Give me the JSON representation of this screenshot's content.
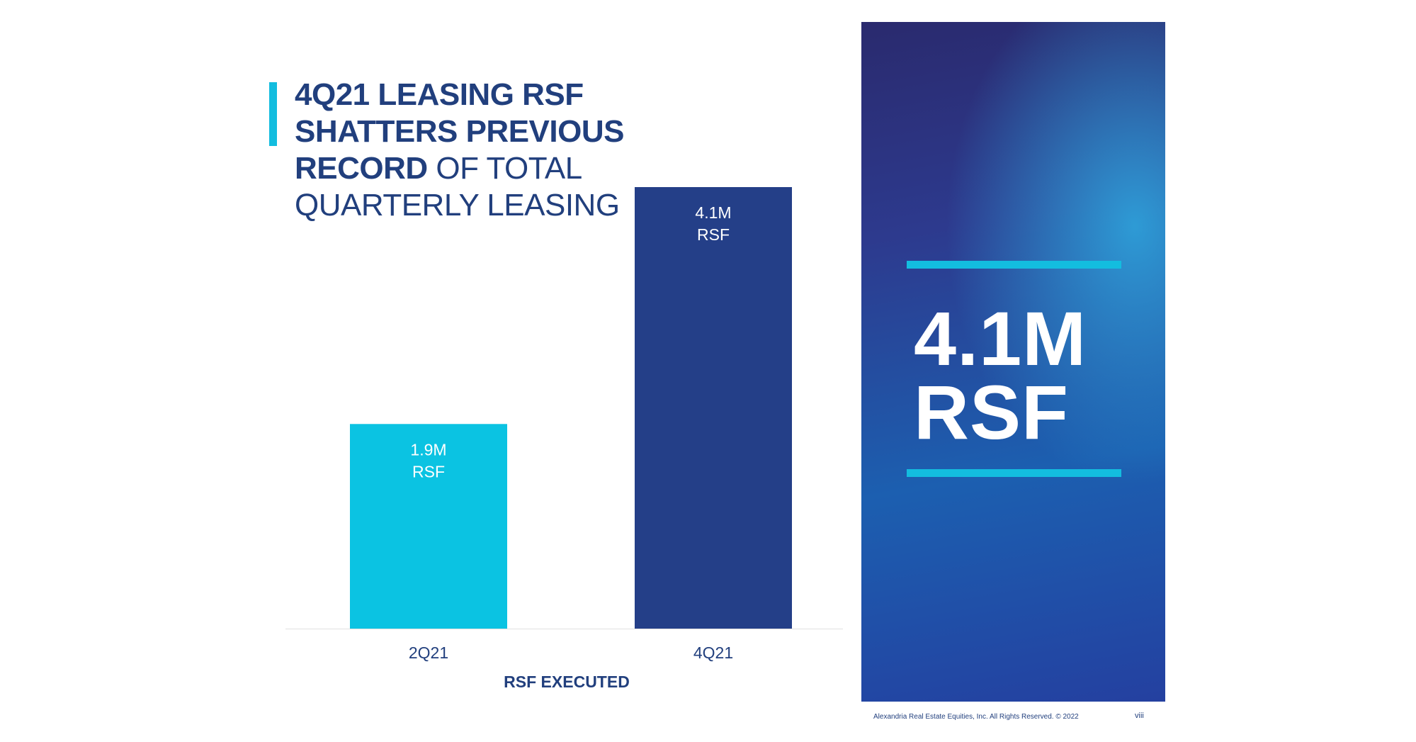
{
  "title": {
    "line1": "4Q21 LEASING RSF",
    "line2": "SHATTERS PREVIOUS",
    "line3_bold": "RECORD",
    "line3_light": "OF TOTAL",
    "line4": "QUARTERLY LEASING"
  },
  "chart_data": {
    "type": "bar",
    "categories": [
      "2Q21",
      "4Q21"
    ],
    "values": [
      1.9,
      4.1
    ],
    "data_labels": [
      [
        "1.9M",
        "RSF"
      ],
      [
        "4.1M",
        "RSF"
      ]
    ],
    "colors": [
      "#0bc3e2",
      "#243f88"
    ],
    "xlabel": "RSF EXECUTED",
    "ylabel": "",
    "unit": "M RSF",
    "ylim": [
      0,
      4.1
    ]
  },
  "highlight": {
    "value": "4.1M",
    "unit": "RSF"
  },
  "footer": {
    "copyright": "Alexandria Real Estate Equities, Inc. All Rights Reserved. © 2022",
    "page": "viii"
  },
  "colors": {
    "navy": "#213f7d",
    "cyan": "#13bddf",
    "bar_light": "#0bc3e2",
    "bar_dark": "#243f88"
  }
}
